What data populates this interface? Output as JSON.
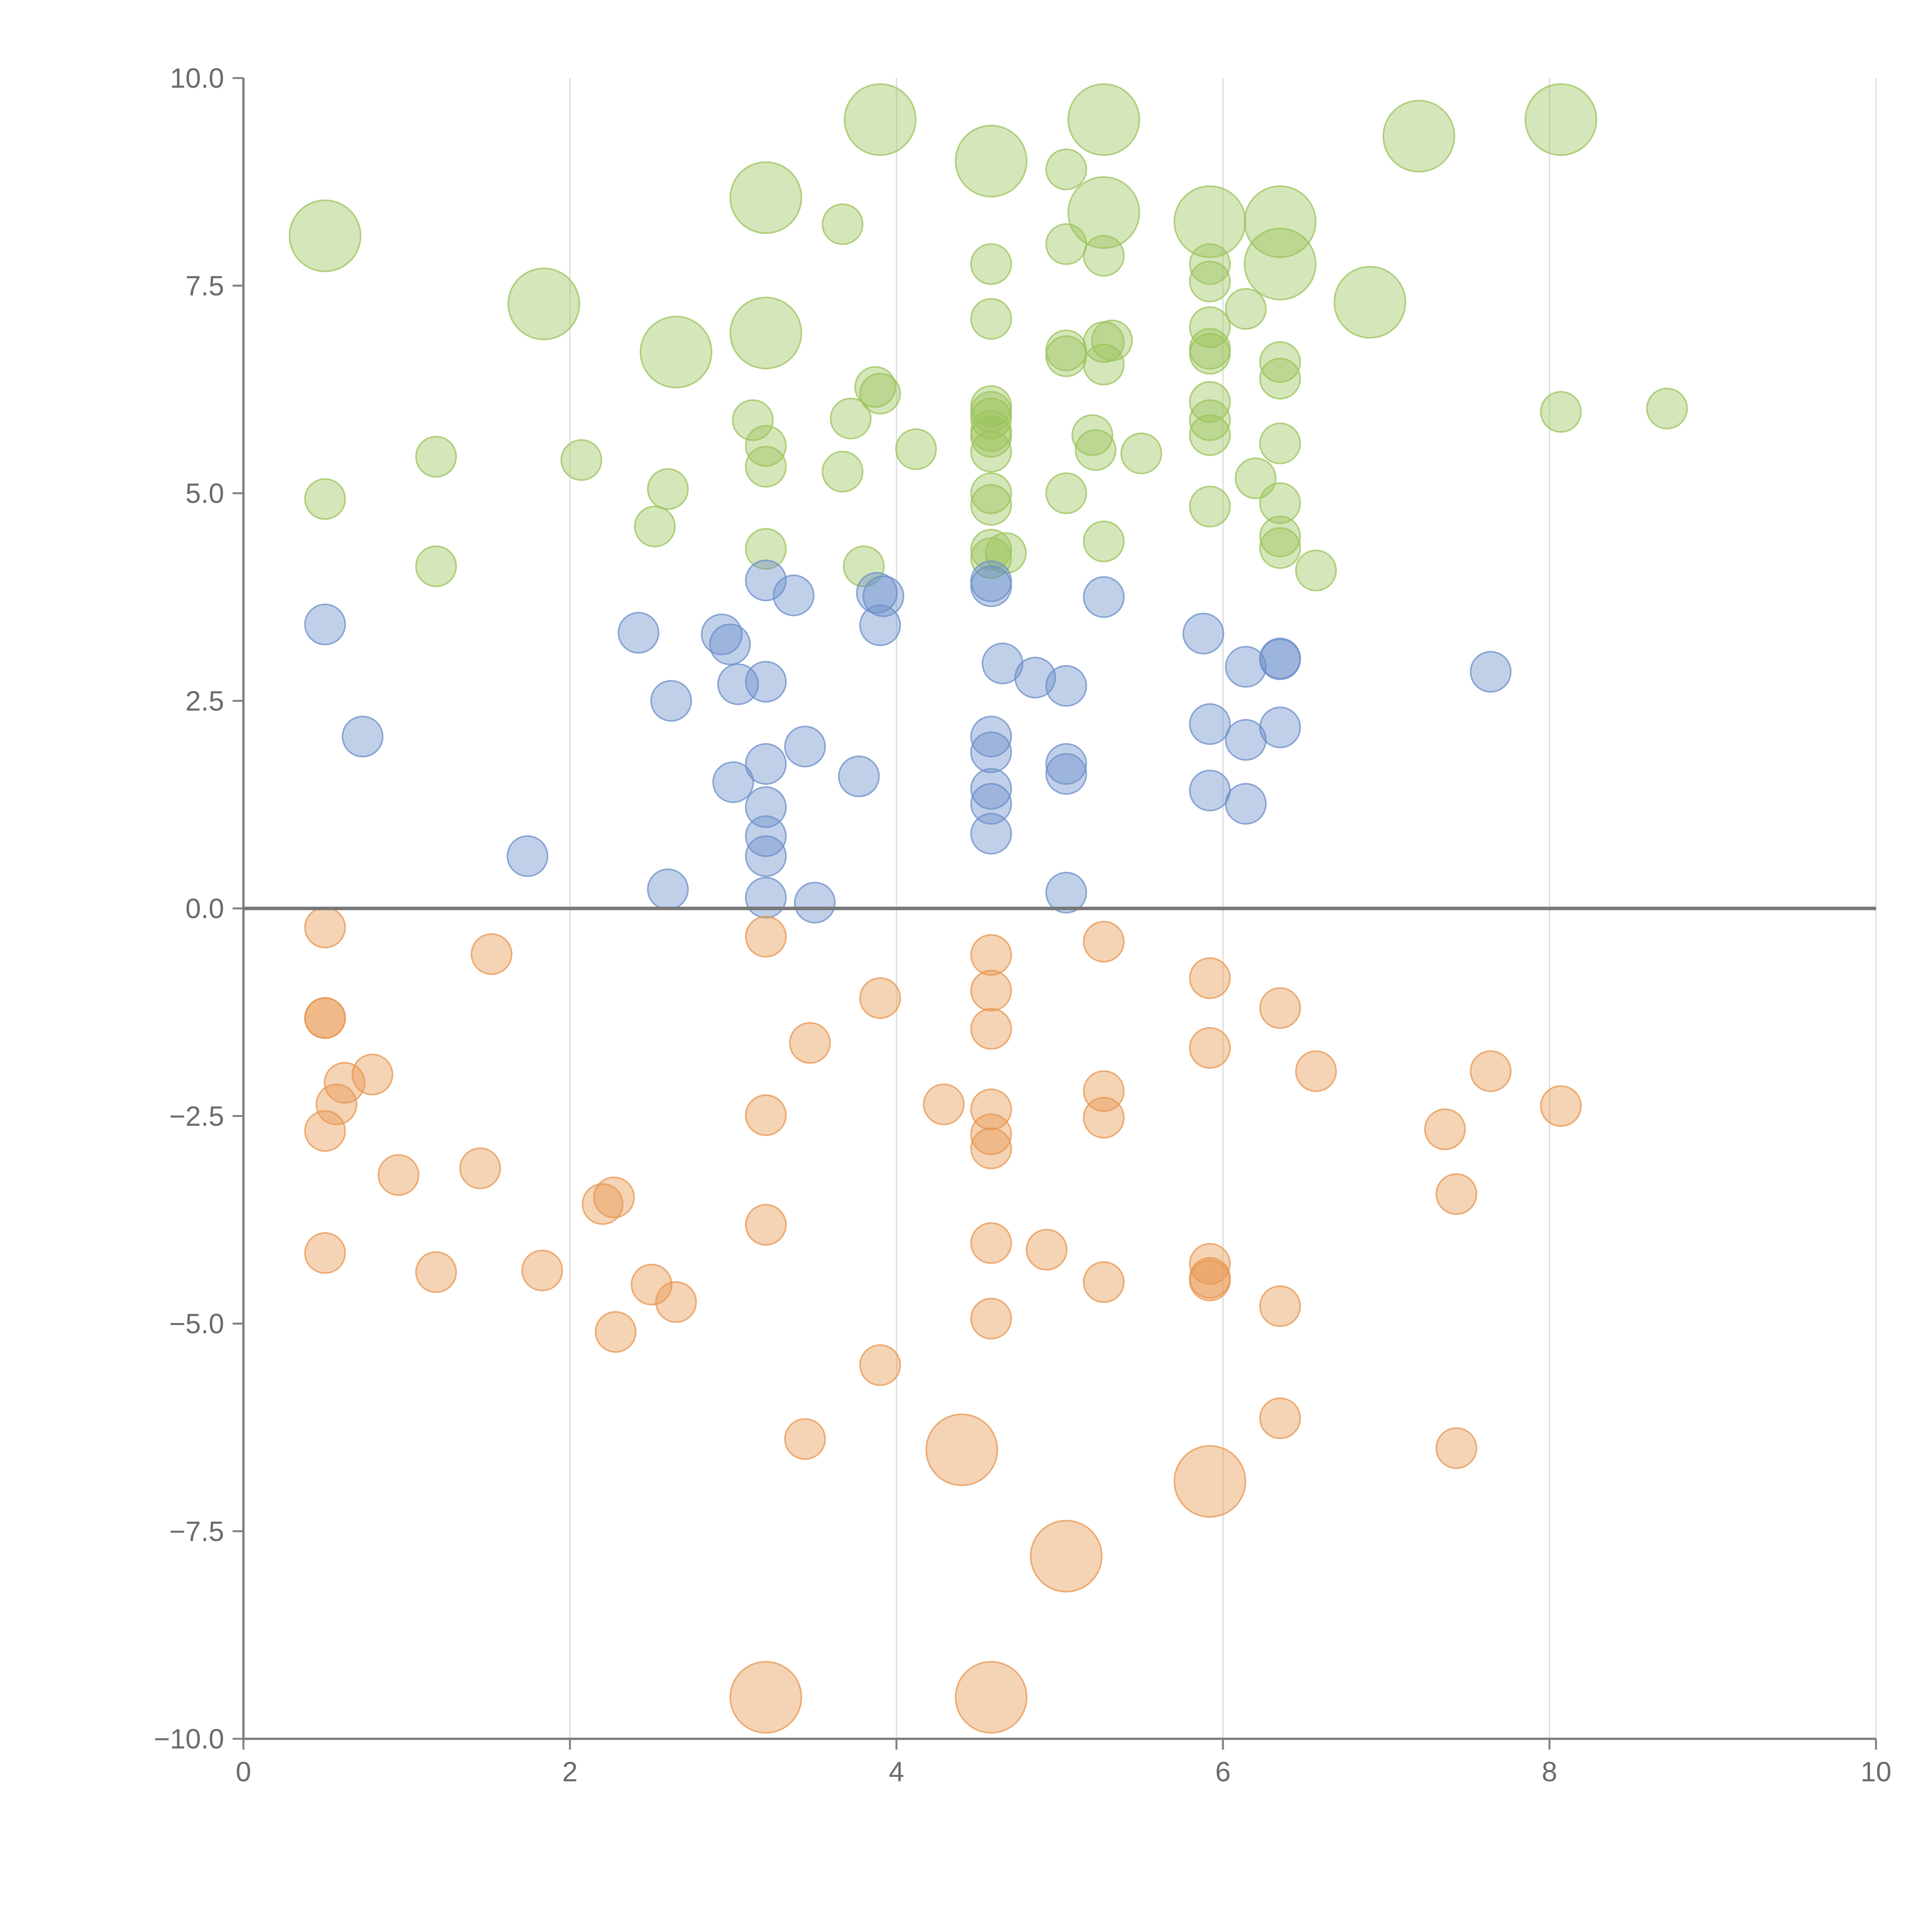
{
  "chart_data": {
    "type": "scatter",
    "title": "",
    "xlabel": "",
    "ylabel": "",
    "xlim": [
      0,
      10
    ],
    "ylim": [
      -10,
      10
    ],
    "x_ticks": [
      "0",
      "2",
      "4",
      "6",
      "8",
      "10"
    ],
    "y_ticks": [
      "10.0",
      "7.5",
      "5.0",
      "2.5",
      "0.0",
      "−2.5",
      "−5.0",
      "−7.5",
      "−10.0"
    ],
    "x_tick_values": [
      0,
      2,
      4,
      6,
      8,
      10
    ],
    "y_tick_values": [
      10,
      7.5,
      5,
      2.5,
      0,
      -2.5,
      -5,
      -7.5,
      -10
    ],
    "grid": "vertical gridlines at x ticks",
    "colors": {
      "green": "#9bc35a",
      "blue": "#6b8fca",
      "orange": "#e8964f",
      "axis": "#808080"
    },
    "series": [
      {
        "name": "green",
        "color": "#9bc35a",
        "points": [
          {
            "x": 0.5,
            "y": 8.1,
            "r": 2
          },
          {
            "x": 1.84,
            "y": 7.28,
            "r": 2
          },
          {
            "x": 2.65,
            "y": 6.7,
            "r": 2
          },
          {
            "x": 3.2,
            "y": 8.56,
            "r": 2
          },
          {
            "x": 3.2,
            "y": 6.93,
            "r": 2
          },
          {
            "x": 3.9,
            "y": 9.5,
            "r": 2
          },
          {
            "x": 4.58,
            "y": 9.0,
            "r": 2
          },
          {
            "x": 5.27,
            "y": 9.5,
            "r": 2
          },
          {
            "x": 5.27,
            "y": 8.38,
            "r": 2
          },
          {
            "x": 5.92,
            "y": 8.27,
            "r": 2
          },
          {
            "x": 6.35,
            "y": 8.27,
            "r": 2
          },
          {
            "x": 6.35,
            "y": 7.76,
            "r": 2
          },
          {
            "x": 6.9,
            "y": 7.3,
            "r": 2
          },
          {
            "x": 7.2,
            "y": 9.3,
            "r": 2
          },
          {
            "x": 8.07,
            "y": 9.5,
            "r": 2
          },
          {
            "x": 3.67,
            "y": 8.24,
            "r": 1
          },
          {
            "x": 4.58,
            "y": 7.76,
            "r": 1
          },
          {
            "x": 4.58,
            "y": 7.1,
            "r": 1
          },
          {
            "x": 5.04,
            "y": 8.9,
            "r": 1
          },
          {
            "x": 5.04,
            "y": 8.0,
            "r": 1
          },
          {
            "x": 5.27,
            "y": 7.86,
            "r": 1
          },
          {
            "x": 5.92,
            "y": 7.76,
            "r": 1
          },
          {
            "x": 5.92,
            "y": 7.55,
            "r": 1
          },
          {
            "x": 5.92,
            "y": 7.0,
            "r": 1
          },
          {
            "x": 6.14,
            "y": 7.22,
            "r": 1
          },
          {
            "x": 5.04,
            "y": 6.72,
            "r": 1
          },
          {
            "x": 5.04,
            "y": 6.65,
            "r": 1
          },
          {
            "x": 5.27,
            "y": 6.82,
            "r": 1
          },
          {
            "x": 5.32,
            "y": 6.84,
            "r": 1
          },
          {
            "x": 5.27,
            "y": 6.55,
            "r": 1
          },
          {
            "x": 5.92,
            "y": 6.74,
            "r": 1
          },
          {
            "x": 5.92,
            "y": 6.68,
            "r": 1
          },
          {
            "x": 6.35,
            "y": 6.58,
            "r": 1
          },
          {
            "x": 6.35,
            "y": 6.38,
            "r": 1
          },
          {
            "x": 3.87,
            "y": 6.28,
            "r": 1
          },
          {
            "x": 3.9,
            "y": 6.2,
            "r": 1
          },
          {
            "x": 4.58,
            "y": 6.05,
            "r": 1
          },
          {
            "x": 4.58,
            "y": 5.98,
            "r": 1
          },
          {
            "x": 4.58,
            "y": 5.9,
            "r": 1
          },
          {
            "x": 4.58,
            "y": 5.75,
            "r": 1
          },
          {
            "x": 4.58,
            "y": 5.68,
            "r": 1
          },
          {
            "x": 4.58,
            "y": 5.5,
            "r": 1
          },
          {
            "x": 3.12,
            "y": 5.88,
            "r": 1
          },
          {
            "x": 3.72,
            "y": 5.9,
            "r": 1
          },
          {
            "x": 5.92,
            "y": 6.1,
            "r": 1
          },
          {
            "x": 5.92,
            "y": 5.88,
            "r": 1
          },
          {
            "x": 5.92,
            "y": 5.7,
            "r": 1
          },
          {
            "x": 8.07,
            "y": 5.98,
            "r": 1
          },
          {
            "x": 8.72,
            "y": 6.02,
            "r": 1
          },
          {
            "x": 1.18,
            "y": 5.44,
            "r": 1
          },
          {
            "x": 2.07,
            "y": 5.4,
            "r": 1
          },
          {
            "x": 3.2,
            "y": 5.57,
            "r": 1
          },
          {
            "x": 3.2,
            "y": 5.32,
            "r": 1
          },
          {
            "x": 3.67,
            "y": 5.26,
            "r": 1
          },
          {
            "x": 4.12,
            "y": 5.53,
            "r": 1
          },
          {
            "x": 5.2,
            "y": 5.7,
            "r": 1
          },
          {
            "x": 5.22,
            "y": 5.52,
            "r": 1
          },
          {
            "x": 5.5,
            "y": 5.48,
            "r": 1
          },
          {
            "x": 6.35,
            "y": 5.6,
            "r": 1
          },
          {
            "x": 6.2,
            "y": 5.18,
            "r": 1
          },
          {
            "x": 0.5,
            "y": 4.93,
            "r": 1
          },
          {
            "x": 2.6,
            "y": 5.05,
            "r": 1
          },
          {
            "x": 2.52,
            "y": 4.6,
            "r": 1
          },
          {
            "x": 4.58,
            "y": 5.0,
            "r": 1
          },
          {
            "x": 4.58,
            "y": 4.86,
            "r": 1
          },
          {
            "x": 5.04,
            "y": 5.0,
            "r": 1
          },
          {
            "x": 5.92,
            "y": 4.84,
            "r": 1
          },
          {
            "x": 6.35,
            "y": 4.88,
            "r": 1
          },
          {
            "x": 6.35,
            "y": 4.48,
            "r": 1
          },
          {
            "x": 6.35,
            "y": 4.34,
            "r": 1
          },
          {
            "x": 6.57,
            "y": 4.07,
            "r": 1
          },
          {
            "x": 1.18,
            "y": 4.12,
            "r": 1
          },
          {
            "x": 3.2,
            "y": 4.33,
            "r": 1
          },
          {
            "x": 3.8,
            "y": 4.12,
            "r": 1
          },
          {
            "x": 4.58,
            "y": 4.32,
            "r": 1
          },
          {
            "x": 4.58,
            "y": 4.22,
            "r": 1
          },
          {
            "x": 4.67,
            "y": 4.28,
            "r": 1
          },
          {
            "x": 5.27,
            "y": 4.42,
            "r": 1
          }
        ]
      },
      {
        "name": "blue",
        "color": "#6b8fca",
        "points": [
          {
            "x": 0.5,
            "y": 3.42,
            "r": 1
          },
          {
            "x": 0.73,
            "y": 2.07,
            "r": 1
          },
          {
            "x": 1.74,
            "y": 0.63,
            "r": 1
          },
          {
            "x": 2.42,
            "y": 3.32,
            "r": 1
          },
          {
            "x": 2.62,
            "y": 2.5,
            "r": 1
          },
          {
            "x": 2.6,
            "y": 0.23,
            "r": 1
          },
          {
            "x": 2.93,
            "y": 3.3,
            "r": 1
          },
          {
            "x": 2.98,
            "y": 3.18,
            "r": 1
          },
          {
            "x": 3.03,
            "y": 2.7,
            "r": 1
          },
          {
            "x": 3.0,
            "y": 1.52,
            "r": 1
          },
          {
            "x": 3.2,
            "y": 3.95,
            "r": 1
          },
          {
            "x": 3.2,
            "y": 2.73,
            "r": 1
          },
          {
            "x": 3.2,
            "y": 1.74,
            "r": 1
          },
          {
            "x": 3.2,
            "y": 1.22,
            "r": 1
          },
          {
            "x": 3.2,
            "y": 0.87,
            "r": 1
          },
          {
            "x": 3.2,
            "y": 0.63,
            "r": 1
          },
          {
            "x": 3.2,
            "y": 0.13,
            "r": 1
          },
          {
            "x": 3.37,
            "y": 3.77,
            "r": 1
          },
          {
            "x": 3.44,
            "y": 1.95,
            "r": 1
          },
          {
            "x": 3.5,
            "y": 0.07,
            "r": 1
          },
          {
            "x": 3.77,
            "y": 1.59,
            "r": 1
          },
          {
            "x": 3.88,
            "y": 3.8,
            "r": 1
          },
          {
            "x": 3.92,
            "y": 3.76,
            "r": 1
          },
          {
            "x": 3.9,
            "y": 3.41,
            "r": 1
          },
          {
            "x": 4.58,
            "y": 3.94,
            "r": 1
          },
          {
            "x": 4.58,
            "y": 3.88,
            "r": 1
          },
          {
            "x": 4.65,
            "y": 2.95,
            "r": 1
          },
          {
            "x": 4.58,
            "y": 2.07,
            "r": 1
          },
          {
            "x": 4.58,
            "y": 1.88,
            "r": 1
          },
          {
            "x": 4.58,
            "y": 1.44,
            "r": 1
          },
          {
            "x": 4.58,
            "y": 1.26,
            "r": 1
          },
          {
            "x": 4.58,
            "y": 0.9,
            "r": 1
          },
          {
            "x": 4.85,
            "y": 2.78,
            "r": 1
          },
          {
            "x": 5.04,
            "y": 2.68,
            "r": 1
          },
          {
            "x": 5.04,
            "y": 1.74,
            "r": 1
          },
          {
            "x": 5.04,
            "y": 1.62,
            "r": 1
          },
          {
            "x": 5.04,
            "y": 0.19,
            "r": 1
          },
          {
            "x": 5.27,
            "y": 3.75,
            "r": 1
          },
          {
            "x": 5.88,
            "y": 3.31,
            "r": 1
          },
          {
            "x": 5.92,
            "y": 2.22,
            "r": 1
          },
          {
            "x": 5.92,
            "y": 1.42,
            "r": 1
          },
          {
            "x": 6.14,
            "y": 2.91,
            "r": 1
          },
          {
            "x": 6.14,
            "y": 2.03,
            "r": 1
          },
          {
            "x": 6.14,
            "y": 1.26,
            "r": 1
          },
          {
            "x": 6.35,
            "y": 3.01,
            "r": 1
          },
          {
            "x": 6.35,
            "y": 3.0,
            "r": 1
          },
          {
            "x": 6.35,
            "y": 2.18,
            "r": 1
          },
          {
            "x": 7.64,
            "y": 2.85,
            "r": 1
          }
        ]
      },
      {
        "name": "orange",
        "color": "#e8964f",
        "points": [
          {
            "x": 0.5,
            "y": -0.23,
            "r": 1
          },
          {
            "x": 0.5,
            "y": -1.32,
            "r": 1
          },
          {
            "x": 0.5,
            "y": -1.32,
            "r": 1
          },
          {
            "x": 0.62,
            "y": -2.1,
            "r": 1
          },
          {
            "x": 0.57,
            "y": -2.36,
            "r": 1
          },
          {
            "x": 0.5,
            "y": -2.68,
            "r": 1
          },
          {
            "x": 0.79,
            "y": -2.0,
            "r": 1
          },
          {
            "x": 0.95,
            "y": -3.21,
            "r": 1
          },
          {
            "x": 0.5,
            "y": -4.15,
            "r": 1
          },
          {
            "x": 1.18,
            "y": -4.38,
            "r": 1
          },
          {
            "x": 1.45,
            "y": -3.13,
            "r": 1
          },
          {
            "x": 1.52,
            "y": -0.55,
            "r": 1
          },
          {
            "x": 1.83,
            "y": -4.36,
            "r": 1
          },
          {
            "x": 2.2,
            "y": -3.56,
            "r": 1
          },
          {
            "x": 2.27,
            "y": -3.48,
            "r": 1
          },
          {
            "x": 2.28,
            "y": -5.1,
            "r": 1
          },
          {
            "x": 2.5,
            "y": -4.53,
            "r": 1
          },
          {
            "x": 2.65,
            "y": -4.74,
            "r": 1
          },
          {
            "x": 3.2,
            "y": -0.34,
            "r": 1
          },
          {
            "x": 3.2,
            "y": -2.49,
            "r": 1
          },
          {
            "x": 3.2,
            "y": -3.81,
            "r": 1
          },
          {
            "x": 3.47,
            "y": -1.62,
            "r": 1
          },
          {
            "x": 3.44,
            "y": -6.39,
            "r": 1
          },
          {
            "x": 3.9,
            "y": -1.08,
            "r": 1
          },
          {
            "x": 3.9,
            "y": -5.5,
            "r": 1
          },
          {
            "x": 4.29,
            "y": -2.36,
            "r": 1
          },
          {
            "x": 4.58,
            "y": -0.56,
            "r": 1
          },
          {
            "x": 4.58,
            "y": -0.99,
            "r": 1
          },
          {
            "x": 4.58,
            "y": -1.45,
            "r": 1
          },
          {
            "x": 4.58,
            "y": -2.42,
            "r": 1
          },
          {
            "x": 4.58,
            "y": -2.72,
            "r": 1
          },
          {
            "x": 4.58,
            "y": -2.89,
            "r": 1
          },
          {
            "x": 4.58,
            "y": -4.03,
            "r": 1
          },
          {
            "x": 4.58,
            "y": -4.94,
            "r": 1
          },
          {
            "x": 4.92,
            "y": -4.11,
            "r": 1
          },
          {
            "x": 5.27,
            "y": -0.4,
            "r": 1
          },
          {
            "x": 5.27,
            "y": -2.2,
            "r": 1
          },
          {
            "x": 5.27,
            "y": -2.52,
            "r": 1
          },
          {
            "x": 5.27,
            "y": -4.5,
            "r": 1
          },
          {
            "x": 5.92,
            "y": -0.84,
            "r": 1
          },
          {
            "x": 5.92,
            "y": -1.68,
            "r": 1
          },
          {
            "x": 5.92,
            "y": -4.28,
            "r": 1
          },
          {
            "x": 5.92,
            "y": -4.48,
            "r": 1
          },
          {
            "x": 5.92,
            "y": -4.45,
            "r": 1
          },
          {
            "x": 6.35,
            "y": -1.2,
            "r": 1
          },
          {
            "x": 6.35,
            "y": -4.79,
            "r": 1
          },
          {
            "x": 6.35,
            "y": -6.14,
            "r": 1
          },
          {
            "x": 6.57,
            "y": -1.96,
            "r": 1
          },
          {
            "x": 7.36,
            "y": -2.66,
            "r": 1
          },
          {
            "x": 7.43,
            "y": -3.44,
            "r": 1
          },
          {
            "x": 7.43,
            "y": -6.5,
            "r": 1
          },
          {
            "x": 7.64,
            "y": -1.96,
            "r": 1
          },
          {
            "x": 8.07,
            "y": -2.38,
            "r": 1
          },
          {
            "x": 4.4,
            "y": -6.52,
            "r": 2
          },
          {
            "x": 5.92,
            "y": -6.9,
            "r": 2
          },
          {
            "x": 5.04,
            "y": -7.8,
            "r": 2
          },
          {
            "x": 3.2,
            "y": -9.5,
            "r": 2
          },
          {
            "x": 4.58,
            "y": -9.5,
            "r": 2
          }
        ]
      }
    ]
  }
}
